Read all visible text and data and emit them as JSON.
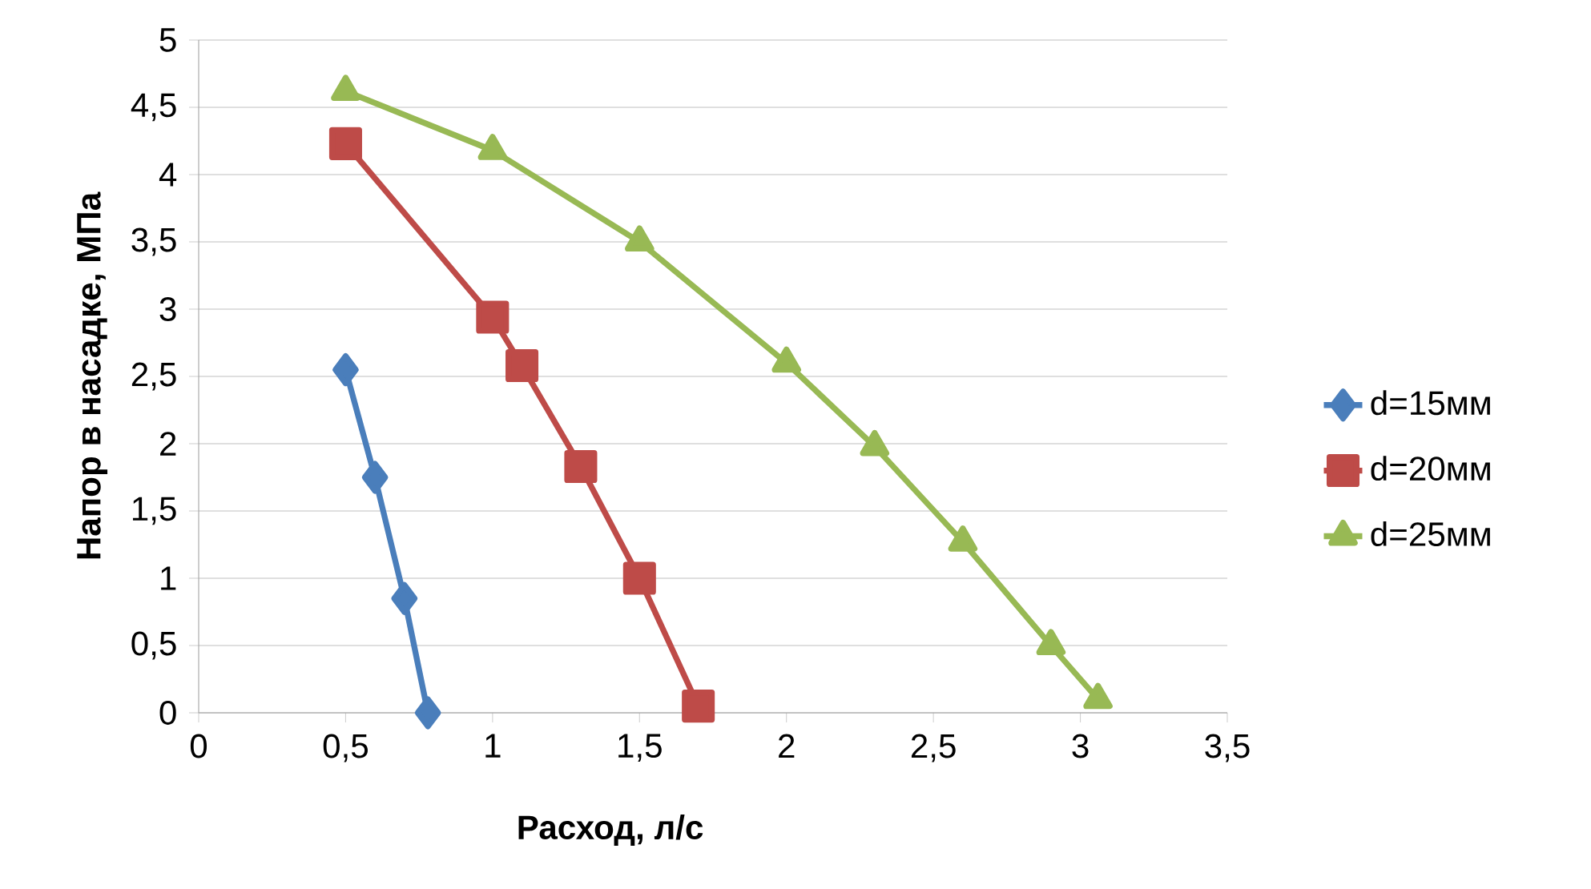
{
  "chart_data": {
    "type": "line",
    "xlabel": "Расход, л/с",
    "ylabel": "Напор в насадке, МПа",
    "xlim": [
      0,
      3.5
    ],
    "xticks": [
      0,
      {
        "value": 0.5,
        "label": "0,5"
      },
      1,
      {
        "value": 1.5,
        "label": "1,5"
      },
      2,
      {
        "value": 2.5,
        "label": "2,5"
      },
      3,
      {
        "value": 3.5,
        "label": "3,5"
      }
    ],
    "ylim": [
      0,
      5
    ],
    "yticks": [
      0,
      {
        "value": 0.5,
        "label": "0,5"
      },
      1,
      {
        "value": 1.5,
        "label": "1,5"
      },
      2,
      {
        "value": 2.5,
        "label": "2,5"
      },
      3,
      {
        "value": 3.5,
        "label": "3,5"
      },
      4,
      {
        "value": 4.5,
        "label": "4,5"
      },
      5
    ],
    "grid": "y",
    "legend": "right",
    "line_style": "solid",
    "series": [
      {
        "name": "d=15мм",
        "color": "#4a7ebb",
        "marker": "diamond",
        "x": [
          0.5,
          0.6,
          0.7,
          0.78
        ],
        "values": [
          2.55,
          1.75,
          0.85,
          0.0
        ]
      },
      {
        "name": "d=20мм",
        "color": "#be4b48",
        "marker": "square",
        "x": [
          0.5,
          1.0,
          1.1,
          1.3,
          1.5,
          1.7
        ],
        "values": [
          4.23,
          2.94,
          2.58,
          1.83,
          1.0,
          0.05
        ]
      },
      {
        "name": "d=25мм",
        "color": "#98b954",
        "marker": "triangle",
        "x": [
          0.5,
          1.0,
          1.5,
          2.0,
          2.3,
          2.6,
          2.9,
          3.06
        ],
        "values": [
          4.62,
          4.18,
          3.5,
          2.6,
          1.98,
          1.27,
          0.5,
          0.1
        ]
      }
    ]
  }
}
